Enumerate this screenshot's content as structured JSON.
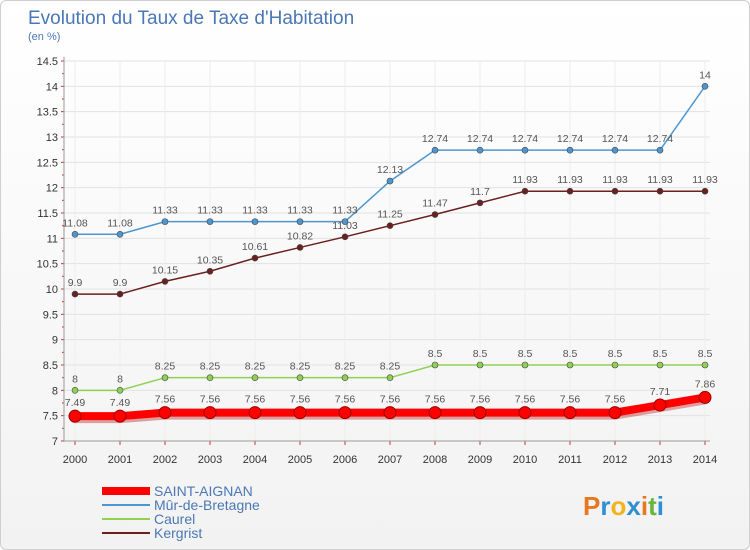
{
  "chart_data": {
    "type": "line",
    "title": "Evolution du Taux de Taxe d'Habitation",
    "subtitle": "(en %)",
    "x": [
      "2000",
      "2001",
      "2002",
      "2003",
      "2004",
      "2005",
      "2006",
      "2007",
      "2008",
      "2009",
      "2010",
      "2011",
      "2012",
      "2013",
      "2014"
    ],
    "ylim": [
      7,
      14.5
    ],
    "yticks": [
      "7",
      "7.5",
      "8",
      "8.5",
      "9",
      "9.5",
      "10",
      "10.5",
      "11",
      "11.5",
      "12",
      "12.5",
      "13",
      "13.5",
      "14",
      "14.5"
    ],
    "grid": true,
    "legend_position": "bottom-left",
    "series": [
      {
        "name": "SAINT-AIGNAN",
        "color": "#ff0000",
        "values": [
          7.49,
          7.49,
          7.56,
          7.56,
          7.56,
          7.56,
          7.56,
          7.56,
          7.56,
          7.56,
          7.56,
          7.56,
          7.56,
          7.71,
          7.86
        ],
        "labels": [
          "7.49",
          "7.49",
          "7.56",
          "7.56",
          "7.56",
          "7.56",
          "7.56",
          "7.56",
          "7.56",
          "7.56",
          "7.56",
          "7.56",
          "7.56",
          "7.71",
          "7.86"
        ]
      },
      {
        "name": "Mûr-de-Bretagne",
        "color": "#4d97d1",
        "values": [
          11.08,
          11.08,
          11.33,
          11.33,
          11.33,
          11.33,
          11.33,
          12.13,
          12.74,
          12.74,
          12.74,
          12.74,
          12.74,
          12.74,
          14
        ],
        "labels": [
          "11.08",
          "11.08",
          "11.33",
          "11.33",
          "11.33",
          "11.33",
          "11.33",
          "12.13",
          "12.74",
          "12.74",
          "12.74",
          "12.74",
          "12.74",
          "12.74",
          "14"
        ]
      },
      {
        "name": "Caurel",
        "color": "#8fd155",
        "values": [
          8,
          8,
          8.25,
          8.25,
          8.25,
          8.25,
          8.25,
          8.25,
          8.5,
          8.5,
          8.5,
          8.5,
          8.5,
          8.5,
          8.5
        ],
        "labels": [
          "8",
          "8",
          "8.25",
          "8.25",
          "8.25",
          "8.25",
          "8.25",
          "8.25",
          "8.5",
          "8.5",
          "8.5",
          "8.5",
          "8.5",
          "8.5",
          "8.5"
        ]
      },
      {
        "name": "Kergrist",
        "color": "#6b1f1f",
        "values": [
          9.9,
          9.9,
          10.15,
          10.35,
          10.61,
          10.82,
          11.03,
          11.25,
          11.47,
          11.7,
          11.93,
          11.93,
          11.93,
          11.93,
          11.93
        ],
        "labels": [
          "9.9",
          "9.9",
          "10.15",
          "10.35",
          "10.61",
          "10.82",
          "11.03",
          "11.25",
          "11.47",
          "11.7",
          "11.93",
          "11.93",
          "11.93",
          "11.93",
          "11.93"
        ]
      }
    ]
  },
  "brand": {
    "text": "Proxiti",
    "colors": [
      "#e8781e",
      "#2f8fd3",
      "#f2b41b",
      "#2f8fd3",
      "#e8781e",
      "#6ab43e",
      "#2f8fd3"
    ]
  }
}
